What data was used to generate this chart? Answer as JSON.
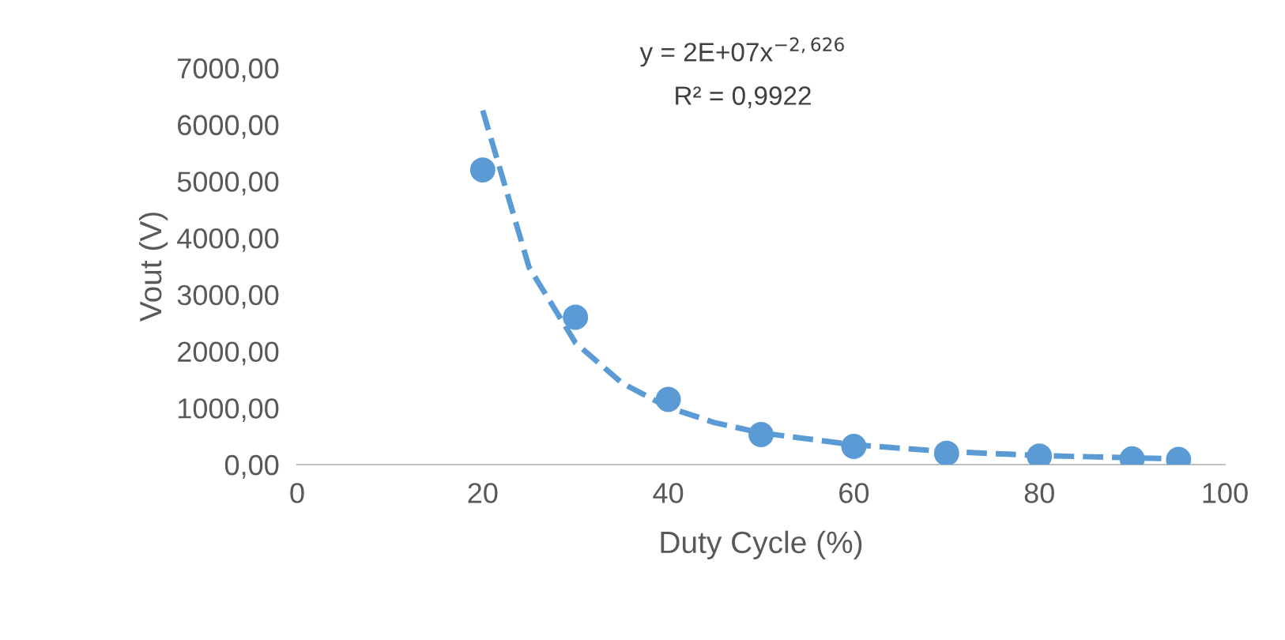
{
  "chart_data": {
    "type": "scatter",
    "xlabel": "Duty Cycle (%)",
    "ylabel": "Vout (V)",
    "annotations": [
      "y = 2E+07x$^{−2,626}$",
      "R² = 0,9922"
    ],
    "series": [
      {
        "color": "#5b9bd5",
        "marker": "circle",
        "x": [
          20,
          30,
          40,
          50,
          60,
          70,
          80,
          90,
          95
        ],
        "values": [
          5200,
          2600,
          1150,
          530,
          320,
          200,
          150,
          100,
          90
        ]
      },
      {
        "type": "line",
        "color": "#5b9bd5",
        "line_style": "dashed",
        "marker": "none",
        "x": [
          20,
          25,
          30,
          35,
          40,
          45,
          50,
          60,
          70,
          80,
          95
        ],
        "values": [
          6250,
          3480,
          2150,
          1440,
          1010,
          740,
          560,
          350,
          230,
          160,
          100
        ]
      }
    ],
    "xlim": [
      0,
      100
    ],
    "xticks": [
      0,
      20,
      40,
      60,
      80,
      100
    ],
    "ylim": [
      0,
      7000
    ],
    "yticks": [
      {
        "value": 0,
        "label": "0,00"
      },
      {
        "value": 1000,
        "label": "1000,00"
      },
      {
        "value": 2000,
        "label": "2000,00"
      },
      {
        "value": 3000,
        "label": "3000,00"
      },
      {
        "value": 4000,
        "label": "4000,00"
      },
      {
        "value": 5000,
        "label": "5000,00"
      },
      {
        "value": 6000,
        "label": "6000,00"
      },
      {
        "value": 7000,
        "label": "7000,00"
      }
    ],
    "grid": false,
    "legend": false
  }
}
